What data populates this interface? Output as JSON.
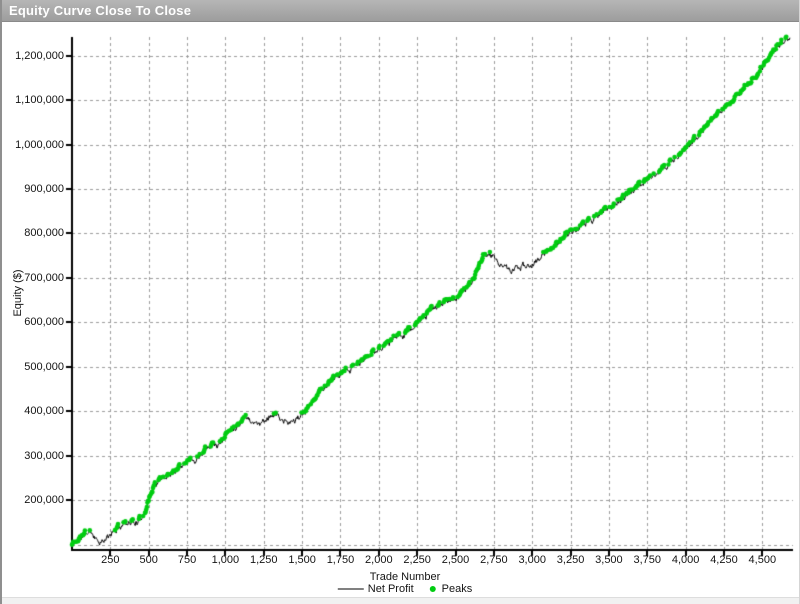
{
  "window": {
    "title": "Equity Curve Close To Close"
  },
  "colors": {
    "net_profit_line": "#000000",
    "peaks_dot": "#00cc11",
    "legend_line_swatch": "#808080",
    "grid": "#9b9b9b",
    "axis": "#000000",
    "titlebar_text": "#ffffff"
  },
  "chart_data": {
    "type": "line",
    "title": "Equity Curve Close To Close",
    "xlabel": "Trade Number",
    "ylabel": "Equity ($)",
    "xlim": [
      0,
      4700
    ],
    "ylim": [
      88000,
      1242000
    ],
    "grid": "dashed",
    "legend_position": "bottom-center",
    "x_ticks": [
      250,
      500,
      750,
      1000,
      1250,
      1500,
      1750,
      2000,
      2250,
      2500,
      2750,
      3000,
      3250,
      3500,
      3750,
      4000,
      4250,
      4500
    ],
    "x_tick_labels": [
      "250",
      "500",
      "750",
      "1,000",
      "1,250",
      "1,500",
      "1,750",
      "2,000",
      "2,250",
      "2,500",
      "2,750",
      "3,000",
      "3,250",
      "3,500",
      "3,750",
      "4,000",
      "4,250",
      "4,500"
    ],
    "y_ticks": [
      200000,
      300000,
      400000,
      500000,
      600000,
      700000,
      800000,
      900000,
      1000000,
      1100000,
      1200000
    ],
    "y_tick_labels": [
      "200,000",
      "300,000",
      "400,000",
      "500,000",
      "600,000",
      "700,000",
      "800,000",
      "900,000",
      "1,000,000",
      "1,100,000",
      "1,200,000"
    ],
    "y_grid_step": 100000,
    "legend": [
      {
        "label": "Net Profit",
        "type": "line",
        "color": "#808080"
      },
      {
        "label": "Peaks",
        "type": "dot",
        "color": "#00cc11"
      }
    ],
    "series": [
      {
        "name": "Net Profit",
        "color": "#000000",
        "start_equity": 100000,
        "end_equity": 1236000,
        "anchors": [
          [
            0,
            100000
          ],
          [
            40,
            110000
          ],
          [
            90,
            126000
          ],
          [
            130,
            128000
          ],
          [
            160,
            112000
          ],
          [
            200,
            104000
          ],
          [
            250,
            122000
          ],
          [
            300,
            138000
          ],
          [
            350,
            150000
          ],
          [
            400,
            152000
          ],
          [
            430,
            148000
          ],
          [
            470,
            170000
          ],
          [
            500,
            200000
          ],
          [
            530,
            232000
          ],
          [
            560,
            240000
          ],
          [
            600,
            252000
          ],
          [
            640,
            258000
          ],
          [
            680,
            270000
          ],
          [
            720,
            282000
          ],
          [
            760,
            293000
          ],
          [
            800,
            288000
          ],
          [
            840,
            305000
          ],
          [
            880,
            322000
          ],
          [
            920,
            330000
          ],
          [
            950,
            322000
          ],
          [
            980,
            335000
          ],
          [
            1010,
            350000
          ],
          [
            1050,
            362000
          ],
          [
            1090,
            372000
          ],
          [
            1130,
            390000
          ],
          [
            1170,
            378000
          ],
          [
            1210,
            372000
          ],
          [
            1250,
            378000
          ],
          [
            1290,
            390000
          ],
          [
            1330,
            393000
          ],
          [
            1370,
            380000
          ],
          [
            1410,
            372000
          ],
          [
            1450,
            380000
          ],
          [
            1490,
            388000
          ],
          [
            1520,
            395000
          ],
          [
            1560,
            418000
          ],
          [
            1600,
            438000
          ],
          [
            1640,
            452000
          ],
          [
            1680,
            465000
          ],
          [
            1720,
            475000
          ],
          [
            1760,
            483000
          ],
          [
            1800,
            492000
          ],
          [
            1840,
            500000
          ],
          [
            1880,
            510000
          ],
          [
            1920,
            520000
          ],
          [
            1960,
            530000
          ],
          [
            2000,
            540000
          ],
          [
            2040,
            550000
          ],
          [
            2080,
            560000
          ],
          [
            2120,
            568000
          ],
          [
            2160,
            575000
          ],
          [
            2200,
            583000
          ],
          [
            2240,
            593000
          ],
          [
            2280,
            607000
          ],
          [
            2320,
            620000
          ],
          [
            2360,
            632000
          ],
          [
            2400,
            641000
          ],
          [
            2440,
            645000
          ],
          [
            2480,
            650000
          ],
          [
            2520,
            660000
          ],
          [
            2560,
            672000
          ],
          [
            2600,
            688000
          ],
          [
            2640,
            715000
          ],
          [
            2680,
            745000
          ],
          [
            2700,
            755000
          ],
          [
            2730,
            750000
          ],
          [
            2760,
            742000
          ],
          [
            2800,
            730000
          ],
          [
            2850,
            716000
          ],
          [
            2900,
            722000
          ],
          [
            2950,
            727000
          ],
          [
            3000,
            731000
          ],
          [
            3050,
            742000
          ],
          [
            3080,
            755000
          ],
          [
            3120,
            765000
          ],
          [
            3160,
            778000
          ],
          [
            3200,
            790000
          ],
          [
            3240,
            799000
          ],
          [
            3280,
            808000
          ],
          [
            3320,
            817000
          ],
          [
            3360,
            826000
          ],
          [
            3400,
            833000
          ],
          [
            3440,
            843000
          ],
          [
            3480,
            852000
          ],
          [
            3520,
            862000
          ],
          [
            3560,
            872000
          ],
          [
            3600,
            881000
          ],
          [
            3640,
            893000
          ],
          [
            3680,
            903000
          ],
          [
            3720,
            913000
          ],
          [
            3750,
            922000
          ],
          [
            3790,
            926000
          ],
          [
            3830,
            938000
          ],
          [
            3870,
            952000
          ],
          [
            3910,
            963000
          ],
          [
            3950,
            975000
          ],
          [
            4000,
            990000
          ],
          [
            4040,
            1005000
          ],
          [
            4080,
            1020000
          ],
          [
            4120,
            1035000
          ],
          [
            4160,
            1048000
          ],
          [
            4200,
            1062000
          ],
          [
            4240,
            1078000
          ],
          [
            4280,
            1092000
          ],
          [
            4320,
            1105000
          ],
          [
            4360,
            1118000
          ],
          [
            4400,
            1132000
          ],
          [
            4440,
            1148000
          ],
          [
            4480,
            1163000
          ],
          [
            4510,
            1178000
          ],
          [
            4540,
            1195000
          ],
          [
            4570,
            1210000
          ],
          [
            4600,
            1222000
          ],
          [
            4630,
            1230000
          ],
          [
            4680,
            1238000
          ]
        ]
      },
      {
        "name": "Peaks",
        "color": "#00cc11",
        "style": "dot",
        "rule": "marker at every new equity high of Net Profit"
      }
    ]
  }
}
